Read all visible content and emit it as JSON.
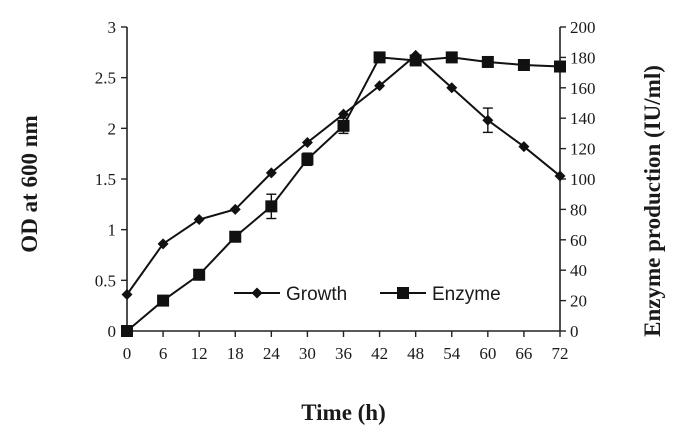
{
  "chart_data": {
    "type": "line",
    "title": "",
    "xlabel": "Time (h)",
    "ylabel_left": "OD at 600 nm",
    "ylabel_right": "Enzyme production (IU/ml)",
    "x_ticks": [
      0,
      6,
      12,
      18,
      24,
      30,
      36,
      42,
      48,
      54,
      60,
      66,
      72
    ],
    "xlim": [
      0,
      72
    ],
    "y_left_lim": [
      0,
      3
    ],
    "y_left_ticks": [
      0,
      0.5,
      1,
      1.5,
      2,
      2.5,
      3
    ],
    "y_left_tick_labels": [
      "0",
      "0.5",
      "1",
      "1.5",
      "2",
      "2.5",
      "3"
    ],
    "y_right_lim": [
      0,
      200
    ],
    "y_right_ticks": [
      0,
      20,
      40,
      60,
      80,
      100,
      120,
      140,
      160,
      180,
      200
    ],
    "grid": false,
    "legend_position": "bottom-right",
    "series": [
      {
        "name": "Growth",
        "axis": "left",
        "marker": "diamond",
        "x": [
          0,
          6,
          12,
          18,
          24,
          30,
          36,
          42,
          48,
          54,
          60,
          66,
          72
        ],
        "values": [
          0.36,
          0.86,
          1.1,
          1.2,
          1.56,
          1.86,
          2.14,
          2.42,
          2.72,
          2.4,
          2.08,
          1.82,
          1.53
        ],
        "error": [
          0,
          0,
          0,
          0,
          0,
          0,
          0,
          0,
          0,
          0,
          0,
          0,
          0
        ]
      },
      {
        "name": "Enzyme",
        "axis": "right",
        "marker": "square",
        "x": [
          0,
          6,
          12,
          18,
          24,
          30,
          36,
          42,
          48,
          54,
          60,
          66,
          72
        ],
        "values": [
          0,
          20,
          37,
          62,
          82,
          113,
          135,
          180,
          178,
          180,
          177,
          175,
          174
        ],
        "error": [
          0,
          0,
          0,
          0,
          8,
          4,
          5,
          3,
          3,
          2,
          0,
          0,
          0
        ]
      },
      {
        "name": "",
        "axis": "left",
        "marker": "none",
        "x": [
          60
        ],
        "values": [
          2.08
        ],
        "error": [
          0.12
        ]
      }
    ]
  }
}
